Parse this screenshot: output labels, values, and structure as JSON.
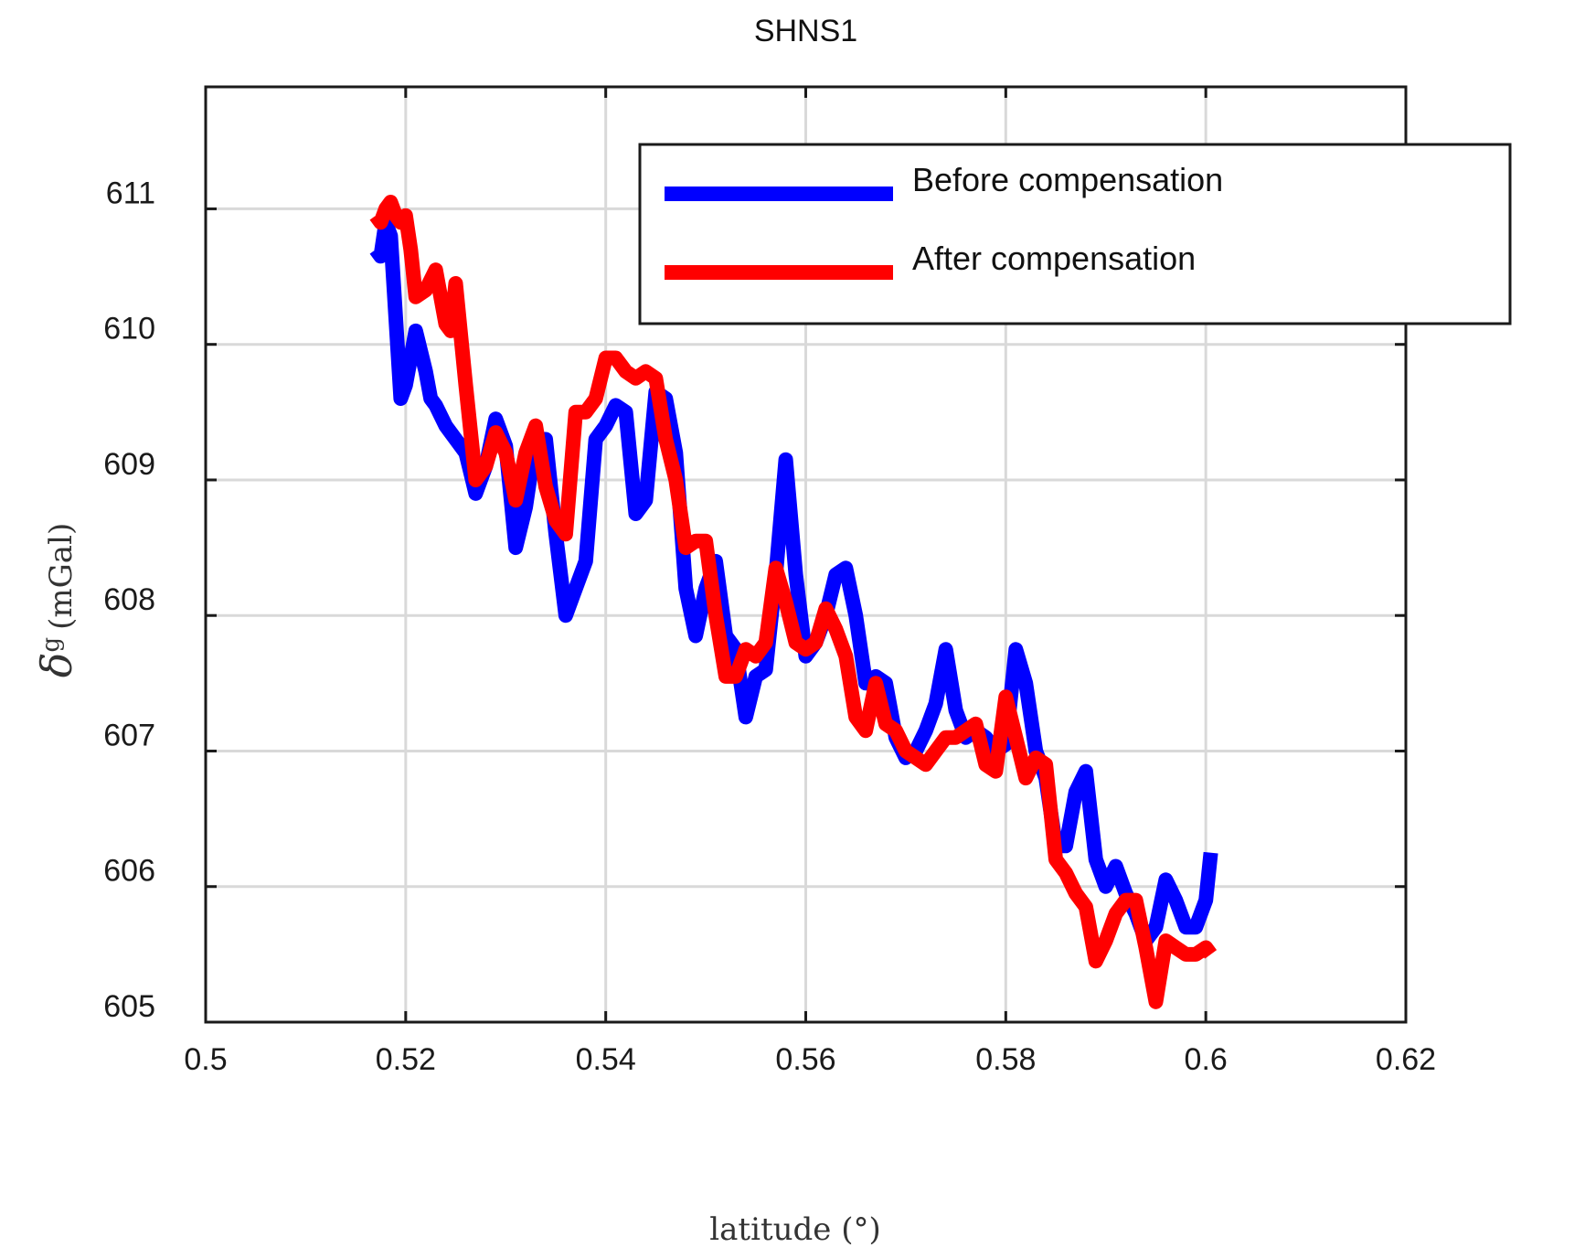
{
  "chart_data": {
    "type": "line",
    "title": "SHNS1",
    "xlabel": "latitude (°)",
    "ylabel": "δg (mGal)",
    "ylabel_symbol": "δ",
    "ylabel_superscript": "g",
    "ylabel_unit": "(mGal)",
    "xlim": [
      0.5,
      0.62
    ],
    "ylim": [
      605,
      611.9
    ],
    "xticks": [
      0.5,
      0.52,
      0.54,
      0.56,
      0.58,
      0.6,
      0.62
    ],
    "xtick_labels": [
      "0.5",
      "0.52",
      "0.54",
      "0.56",
      "0.58",
      "0.6",
      "0.62"
    ],
    "yticks": [
      605,
      606,
      607,
      608,
      609,
      610,
      611
    ],
    "ytick_labels": [
      "605",
      "606",
      "607",
      "608",
      "609",
      "610",
      "611"
    ],
    "grid": true,
    "legend_position": "top-right",
    "series": [
      {
        "name": "Before compensation",
        "color": "#0000ff",
        "points": [
          [
            0.517,
            610.7
          ],
          [
            0.5175,
            610.65
          ],
          [
            0.518,
            610.9
          ],
          [
            0.5185,
            610.8
          ],
          [
            0.519,
            610.2
          ],
          [
            0.5195,
            609.6
          ],
          [
            0.52,
            609.7
          ],
          [
            0.521,
            610.1
          ],
          [
            0.522,
            609.8
          ],
          [
            0.5225,
            609.6
          ],
          [
            0.523,
            609.55
          ],
          [
            0.524,
            609.4
          ],
          [
            0.525,
            609.3
          ],
          [
            0.526,
            609.2
          ],
          [
            0.527,
            608.9
          ],
          [
            0.528,
            609.1
          ],
          [
            0.529,
            609.45
          ],
          [
            0.53,
            609.25
          ],
          [
            0.531,
            608.5
          ],
          [
            0.532,
            608.8
          ],
          [
            0.533,
            609.3
          ],
          [
            0.534,
            609.3
          ],
          [
            0.535,
            608.6
          ],
          [
            0.536,
            608.0
          ],
          [
            0.537,
            608.2
          ],
          [
            0.538,
            608.4
          ],
          [
            0.539,
            609.3
          ],
          [
            0.54,
            609.4
          ],
          [
            0.541,
            609.55
          ],
          [
            0.542,
            609.5
          ],
          [
            0.543,
            608.75
          ],
          [
            0.544,
            608.85
          ],
          [
            0.545,
            609.65
          ],
          [
            0.546,
            609.6
          ],
          [
            0.547,
            609.2
          ],
          [
            0.548,
            608.2
          ],
          [
            0.549,
            607.85
          ],
          [
            0.55,
            608.2
          ],
          [
            0.551,
            608.4
          ],
          [
            0.552,
            607.85
          ],
          [
            0.553,
            607.75
          ],
          [
            0.554,
            607.25
          ],
          [
            0.555,
            607.55
          ],
          [
            0.556,
            607.6
          ],
          [
            0.557,
            608.3
          ],
          [
            0.558,
            609.15
          ],
          [
            0.559,
            608.3
          ],
          [
            0.56,
            607.7
          ],
          [
            0.561,
            607.8
          ],
          [
            0.562,
            608.0
          ],
          [
            0.563,
            608.3
          ],
          [
            0.564,
            608.35
          ],
          [
            0.565,
            608.0
          ],
          [
            0.566,
            607.5
          ],
          [
            0.567,
            607.55
          ],
          [
            0.568,
            607.5
          ],
          [
            0.569,
            607.1
          ],
          [
            0.57,
            606.95
          ],
          [
            0.571,
            607.0
          ],
          [
            0.572,
            607.15
          ],
          [
            0.573,
            607.35
          ],
          [
            0.574,
            607.75
          ],
          [
            0.575,
            607.3
          ],
          [
            0.576,
            607.1
          ],
          [
            0.577,
            607.15
          ],
          [
            0.578,
            607.1
          ],
          [
            0.579,
            607.0
          ],
          [
            0.58,
            607.05
          ],
          [
            0.581,
            607.75
          ],
          [
            0.582,
            607.5
          ],
          [
            0.583,
            607.0
          ],
          [
            0.584,
            606.8
          ],
          [
            0.585,
            606.3
          ],
          [
            0.586,
            606.3
          ],
          [
            0.587,
            606.7
          ],
          [
            0.588,
            606.85
          ],
          [
            0.589,
            606.2
          ],
          [
            0.59,
            606.0
          ],
          [
            0.591,
            606.15
          ],
          [
            0.592,
            605.95
          ],
          [
            0.593,
            605.8
          ],
          [
            0.594,
            605.6
          ],
          [
            0.595,
            605.7
          ],
          [
            0.596,
            606.05
          ],
          [
            0.597,
            605.9
          ],
          [
            0.598,
            605.7
          ],
          [
            0.599,
            605.7
          ],
          [
            0.6,
            605.9
          ],
          [
            0.6005,
            606.25
          ]
        ]
      },
      {
        "name": "After compensation",
        "color": "#ff0000",
        "points": [
          [
            0.517,
            610.95
          ],
          [
            0.5175,
            610.9
          ],
          [
            0.518,
            611.0
          ],
          [
            0.5185,
            611.05
          ],
          [
            0.519,
            610.95
          ],
          [
            0.5195,
            610.9
          ],
          [
            0.52,
            610.95
          ],
          [
            0.5205,
            610.7
          ],
          [
            0.521,
            610.35
          ],
          [
            0.522,
            610.4
          ],
          [
            0.523,
            610.55
          ],
          [
            0.524,
            610.15
          ],
          [
            0.5245,
            610.1
          ],
          [
            0.525,
            610.45
          ],
          [
            0.526,
            609.7
          ],
          [
            0.527,
            609.0
          ],
          [
            0.528,
            609.1
          ],
          [
            0.529,
            609.35
          ],
          [
            0.53,
            609.2
          ],
          [
            0.531,
            608.85
          ],
          [
            0.532,
            609.2
          ],
          [
            0.533,
            609.4
          ],
          [
            0.534,
            608.95
          ],
          [
            0.535,
            608.7
          ],
          [
            0.536,
            608.6
          ],
          [
            0.537,
            609.5
          ],
          [
            0.538,
            609.5
          ],
          [
            0.539,
            609.6
          ],
          [
            0.54,
            609.9
          ],
          [
            0.541,
            609.9
          ],
          [
            0.542,
            609.8
          ],
          [
            0.543,
            609.75
          ],
          [
            0.544,
            609.8
          ],
          [
            0.545,
            609.75
          ],
          [
            0.546,
            609.3
          ],
          [
            0.547,
            609.0
          ],
          [
            0.548,
            608.5
          ],
          [
            0.549,
            608.55
          ],
          [
            0.55,
            608.55
          ],
          [
            0.551,
            608.0
          ],
          [
            0.552,
            607.55
          ],
          [
            0.553,
            607.55
          ],
          [
            0.554,
            607.75
          ],
          [
            0.555,
            607.7
          ],
          [
            0.556,
            607.8
          ],
          [
            0.557,
            608.35
          ],
          [
            0.558,
            608.1
          ],
          [
            0.559,
            607.8
          ],
          [
            0.56,
            607.75
          ],
          [
            0.561,
            607.8
          ],
          [
            0.562,
            608.05
          ],
          [
            0.563,
            607.9
          ],
          [
            0.564,
            607.7
          ],
          [
            0.565,
            607.25
          ],
          [
            0.566,
            607.15
          ],
          [
            0.567,
            607.5
          ],
          [
            0.568,
            607.2
          ],
          [
            0.569,
            607.15
          ],
          [
            0.57,
            607.0
          ],
          [
            0.571,
            606.95
          ],
          [
            0.572,
            606.9
          ],
          [
            0.573,
            607.0
          ],
          [
            0.574,
            607.1
          ],
          [
            0.575,
            607.1
          ],
          [
            0.576,
            607.15
          ],
          [
            0.577,
            607.2
          ],
          [
            0.578,
            606.9
          ],
          [
            0.579,
            606.85
          ],
          [
            0.58,
            607.4
          ],
          [
            0.581,
            607.1
          ],
          [
            0.582,
            606.8
          ],
          [
            0.583,
            606.95
          ],
          [
            0.584,
            606.9
          ],
          [
            0.585,
            606.2
          ],
          [
            0.586,
            606.1
          ],
          [
            0.587,
            605.95
          ],
          [
            0.588,
            605.85
          ],
          [
            0.589,
            605.45
          ],
          [
            0.59,
            605.6
          ],
          [
            0.591,
            605.8
          ],
          [
            0.592,
            605.9
          ],
          [
            0.593,
            605.9
          ],
          [
            0.594,
            605.55
          ],
          [
            0.595,
            605.15
          ],
          [
            0.596,
            605.6
          ],
          [
            0.597,
            605.55
          ],
          [
            0.598,
            605.5
          ],
          [
            0.599,
            605.5
          ],
          [
            0.6,
            605.55
          ],
          [
            0.6005,
            605.5
          ]
        ]
      }
    ]
  }
}
